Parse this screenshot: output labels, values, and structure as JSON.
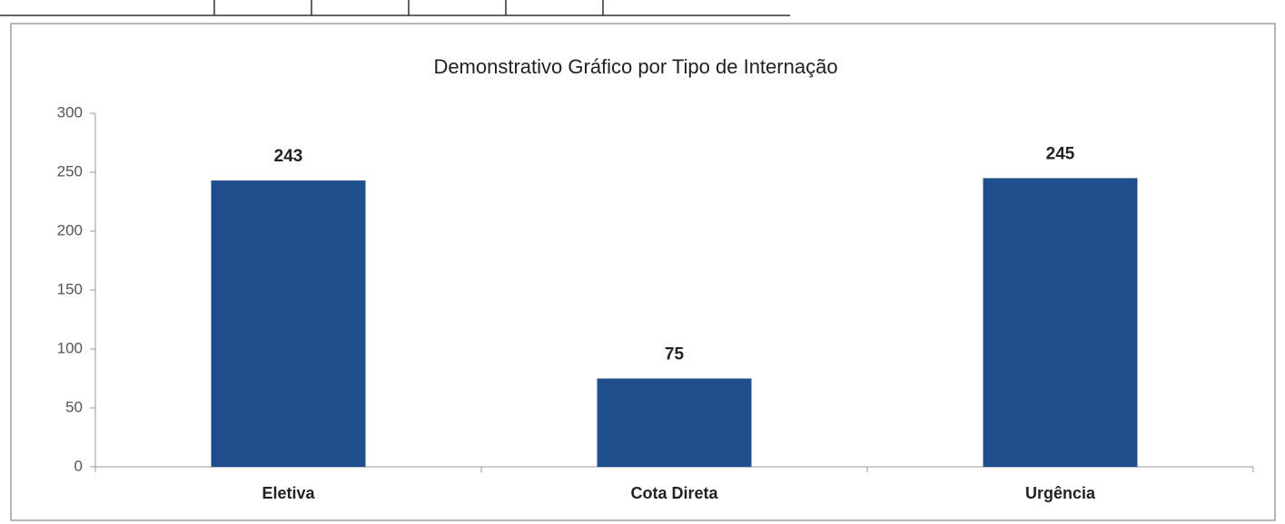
{
  "chart_data": {
    "type": "bar",
    "title": "Demonstrativo Gráfico por Tipo de Internação",
    "categories": [
      "Eletiva",
      "Cota Direta",
      "Urgência"
    ],
    "values": [
      243,
      75,
      245
    ],
    "color": "#1f4e8c",
    "ylim": [
      0,
      300
    ],
    "yticks": [
      0,
      50,
      100,
      150,
      200,
      250,
      300
    ],
    "grid": false
  }
}
